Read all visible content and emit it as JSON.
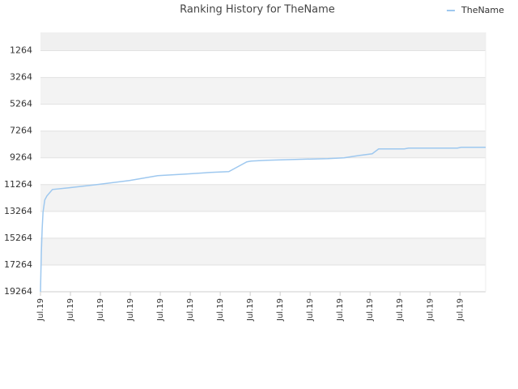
{
  "chart_data": {
    "type": "line",
    "title": "Ranking History for TheName",
    "series": [
      {
        "name": "TheName",
        "color": "#9ec8ef",
        "x": [
          0,
          0.2,
          0.4,
          0.6,
          1.0,
          1.5,
          2.8,
          6.6,
          13.2,
          20.8,
          27.4,
          34.0,
          39.7,
          44.0,
          45.4,
          48.2,
          49.2,
          53.0,
          59.5,
          67.1,
          70.9,
          74.6,
          77.5,
          79.0,
          85.0,
          86.0,
          97.4,
          98.3,
          104.0
        ],
        "values": [
          19264,
          16355,
          14537,
          13327,
          12415,
          12112,
          11628,
          11506,
          11264,
          10961,
          10597,
          10476,
          10355,
          10294,
          10052,
          9567,
          9506,
          9446,
          9385,
          9324,
          9264,
          9082,
          8961,
          8597,
          8597,
          8537,
          8537,
          8476,
          8476
        ]
      }
    ],
    "xlim": [
      0,
      104
    ],
    "xticks": [
      {
        "value": 0,
        "label": "Jul.19"
      },
      {
        "value": 7,
        "label": "Jul.19"
      },
      {
        "value": 14,
        "label": "Jul.19"
      },
      {
        "value": 21,
        "label": "Jul.19"
      },
      {
        "value": 28,
        "label": "Jul.19"
      },
      {
        "value": 35,
        "label": "Jul.19"
      },
      {
        "value": 42,
        "label": "Jul.19"
      },
      {
        "value": 49,
        "label": "Jul.19"
      },
      {
        "value": 56,
        "label": "Jul.19"
      },
      {
        "value": 63,
        "label": "Jul.19"
      },
      {
        "value": 70,
        "label": "Jul.19"
      },
      {
        "value": 77,
        "label": "Jul.19"
      },
      {
        "value": 84,
        "label": "Jul.19"
      },
      {
        "value": 91,
        "label": "Jul.19"
      },
      {
        "value": 98,
        "label": "Jul.19"
      }
    ],
    "ylim": [
      19264,
      -100
    ],
    "yticks": [
      1264,
      3264,
      5264,
      7264,
      9264,
      11264,
      13264,
      15264,
      17264,
      19264
    ],
    "grid": true,
    "legend": "top-right"
  }
}
